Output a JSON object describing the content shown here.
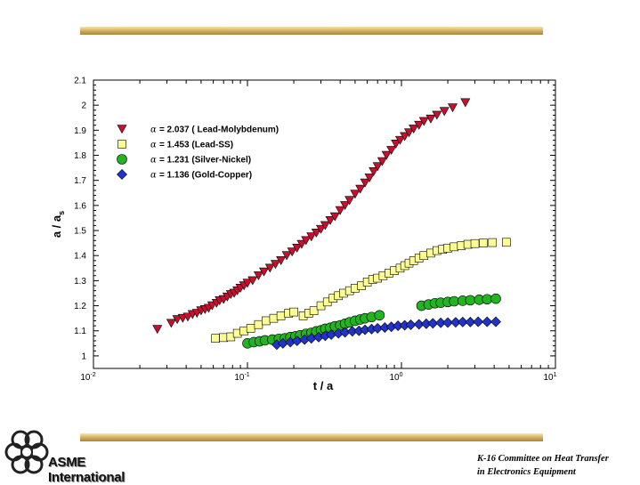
{
  "chart_data": {
    "type": "scatter",
    "xlabel": "t / a",
    "ylabel": "a / a",
    "ylabel_subscript": "s",
    "xscale": "log",
    "xlim": [
      0.01,
      10
    ],
    "ylim": [
      0.95,
      2.1
    ],
    "x_tick_labels": [
      {
        "base": "10",
        "exp": "-2"
      },
      {
        "base": "10",
        "exp": "-1"
      },
      {
        "base": "10",
        "exp": "0"
      },
      {
        "base": "10",
        "exp": "1"
      }
    ],
    "y_ticks": [
      "1",
      "1.1",
      "1.2",
      "1.3",
      "1.4",
      "1.5",
      "1.6",
      "1.7",
      "1.8",
      "1.9",
      "2",
      "2.1"
    ],
    "grid": false,
    "legend_position": "top-left",
    "series": [
      {
        "name": "= 2.037 ( Lead-Molybdenum)",
        "alpha_symbol": "α",
        "marker": "triangle-down",
        "color": "#c8102e",
        "points": [
          [
            0.026,
            1.106
          ],
          [
            0.032,
            1.13
          ],
          [
            0.035,
            1.145
          ],
          [
            0.038,
            1.15
          ],
          [
            0.041,
            1.155
          ],
          [
            0.044,
            1.165
          ],
          [
            0.047,
            1.17
          ],
          [
            0.05,
            1.18
          ],
          [
            0.053,
            1.185
          ],
          [
            0.056,
            1.19
          ],
          [
            0.059,
            1.2
          ],
          [
            0.063,
            1.21
          ],
          [
            0.066,
            1.22
          ],
          [
            0.07,
            1.225
          ],
          [
            0.074,
            1.235
          ],
          [
            0.078,
            1.245
          ],
          [
            0.082,
            1.25
          ],
          [
            0.086,
            1.26
          ],
          [
            0.09,
            1.27
          ],
          [
            0.095,
            1.28
          ],
          [
            0.1,
            1.29
          ],
          [
            0.108,
            1.3
          ],
          [
            0.118,
            1.32
          ],
          [
            0.128,
            1.335
          ],
          [
            0.14,
            1.35
          ],
          [
            0.152,
            1.365
          ],
          [
            0.165,
            1.38
          ],
          [
            0.18,
            1.4
          ],
          [
            0.195,
            1.415
          ],
          [
            0.21,
            1.43
          ],
          [
            0.225,
            1.445
          ],
          [
            0.24,
            1.46
          ],
          [
            0.26,
            1.475
          ],
          [
            0.28,
            1.49
          ],
          [
            0.3,
            1.505
          ],
          [
            0.32,
            1.52
          ],
          [
            0.345,
            1.54
          ],
          [
            0.37,
            1.555
          ],
          [
            0.4,
            1.58
          ],
          [
            0.43,
            1.6
          ],
          [
            0.46,
            1.62
          ],
          [
            0.5,
            1.645
          ],
          [
            0.54,
            1.665
          ],
          [
            0.58,
            1.69
          ],
          [
            0.62,
            1.71
          ],
          [
            0.66,
            1.735
          ],
          [
            0.7,
            1.755
          ],
          [
            0.75,
            1.775
          ],
          [
            0.8,
            1.8
          ],
          [
            0.86,
            1.82
          ],
          [
            0.92,
            1.845
          ],
          [
            0.98,
            1.86
          ],
          [
            1.05,
            1.875
          ],
          [
            1.12,
            1.89
          ],
          [
            1.2,
            1.905
          ],
          [
            1.3,
            1.92
          ],
          [
            1.4,
            1.935
          ],
          [
            1.55,
            1.945
          ],
          [
            1.7,
            1.96
          ],
          [
            1.9,
            1.975
          ],
          [
            2.15,
            1.99
          ],
          [
            2.6,
            2.01
          ]
        ]
      },
      {
        "name": "= 1.453 (Lead-SS)",
        "alpha_symbol": "α",
        "marker": "square",
        "color": "#fdfd96",
        "points": [
          [
            0.062,
            1.07
          ],
          [
            0.07,
            1.073
          ],
          [
            0.078,
            1.076
          ],
          [
            0.086,
            1.09
          ],
          [
            0.095,
            1.1
          ],
          [
            0.105,
            1.11
          ],
          [
            0.118,
            1.125
          ],
          [
            0.132,
            1.14
          ],
          [
            0.148,
            1.15
          ],
          [
            0.165,
            1.16
          ],
          [
            0.185,
            1.17
          ],
          [
            0.2,
            1.175
          ],
          [
            0.23,
            1.16
          ],
          [
            0.25,
            1.17
          ],
          [
            0.27,
            1.18
          ],
          [
            0.3,
            1.2
          ],
          [
            0.33,
            1.215
          ],
          [
            0.36,
            1.23
          ],
          [
            0.39,
            1.24
          ],
          [
            0.42,
            1.25
          ],
          [
            0.46,
            1.26
          ],
          [
            0.5,
            1.27
          ],
          [
            0.55,
            1.28
          ],
          [
            0.6,
            1.295
          ],
          [
            0.65,
            1.305
          ],
          [
            0.7,
            1.31
          ],
          [
            0.76,
            1.32
          ],
          [
            0.83,
            1.33
          ],
          [
            0.9,
            1.34
          ],
          [
            0.98,
            1.35
          ],
          [
            1.05,
            1.36
          ],
          [
            1.12,
            1.37
          ],
          [
            1.2,
            1.38
          ],
          [
            1.3,
            1.39
          ],
          [
            1.4,
            1.4
          ],
          [
            1.55,
            1.41
          ],
          [
            1.7,
            1.42
          ],
          [
            1.85,
            1.425
          ],
          [
            2.0,
            1.43
          ],
          [
            2.2,
            1.435
          ],
          [
            2.45,
            1.44
          ],
          [
            2.7,
            1.445
          ],
          [
            3.0,
            1.448
          ],
          [
            3.4,
            1.45
          ],
          [
            3.9,
            1.452
          ],
          [
            4.8,
            1.453
          ]
        ]
      },
      {
        "name": "= 1.231 (Silver-Nickel)",
        "alpha_symbol": "α",
        "marker": "circle",
        "color": "#22b522",
        "points": [
          [
            0.1,
            1.05
          ],
          [
            0.11,
            1.055
          ],
          [
            0.12,
            1.058
          ],
          [
            0.13,
            1.062
          ],
          [
            0.145,
            1.065
          ],
          [
            0.16,
            1.068
          ],
          [
            0.175,
            1.07
          ],
          [
            0.19,
            1.075
          ],
          [
            0.205,
            1.078
          ],
          [
            0.22,
            1.082
          ],
          [
            0.24,
            1.088
          ],
          [
            0.26,
            1.092
          ],
          [
            0.28,
            1.098
          ],
          [
            0.3,
            1.102
          ],
          [
            0.32,
            1.108
          ],
          [
            0.345,
            1.112
          ],
          [
            0.37,
            1.118
          ],
          [
            0.4,
            1.122
          ],
          [
            0.43,
            1.128
          ],
          [
            0.46,
            1.134
          ],
          [
            0.5,
            1.14
          ],
          [
            0.54,
            1.145
          ],
          [
            0.58,
            1.15
          ],
          [
            0.64,
            1.155
          ],
          [
            0.72,
            1.162
          ],
          [
            1.35,
            1.2
          ],
          [
            1.5,
            1.205
          ],
          [
            1.65,
            1.21
          ],
          [
            1.8,
            1.212
          ],
          [
            2.0,
            1.215
          ],
          [
            2.2,
            1.218
          ],
          [
            2.5,
            1.22
          ],
          [
            2.8,
            1.222
          ],
          [
            3.2,
            1.224
          ],
          [
            3.6,
            1.226
          ],
          [
            4.1,
            1.228
          ]
        ]
      },
      {
        "name": "= 1.136 (Gold-Copper)",
        "alpha_symbol": "α",
        "marker": "diamond",
        "color": "#2233cc",
        "points": [
          [
            0.155,
            1.045
          ],
          [
            0.17,
            1.05
          ],
          [
            0.19,
            1.055
          ],
          [
            0.21,
            1.06
          ],
          [
            0.235,
            1.065
          ],
          [
            0.26,
            1.07
          ],
          [
            0.29,
            1.075
          ],
          [
            0.32,
            1.08
          ],
          [
            0.35,
            1.085
          ],
          [
            0.39,
            1.09
          ],
          [
            0.43,
            1.094
          ],
          [
            0.48,
            1.098
          ],
          [
            0.53,
            1.1
          ],
          [
            0.58,
            1.104
          ],
          [
            0.64,
            1.107
          ],
          [
            0.7,
            1.11
          ],
          [
            0.78,
            1.113
          ],
          [
            0.86,
            1.116
          ],
          [
            0.95,
            1.12
          ],
          [
            1.05,
            1.122
          ],
          [
            1.15,
            1.124
          ],
          [
            1.3,
            1.126
          ],
          [
            1.45,
            1.128
          ],
          [
            1.6,
            1.13
          ],
          [
            1.8,
            1.132
          ],
          [
            2.0,
            1.133
          ],
          [
            2.25,
            1.134
          ],
          [
            2.5,
            1.135
          ],
          [
            2.8,
            1.135
          ],
          [
            3.15,
            1.136
          ],
          [
            3.6,
            1.136
          ],
          [
            4.1,
            1.136
          ]
        ]
      }
    ]
  },
  "logo": {
    "text": "ASME International"
  },
  "footer": {
    "line1": "K-16 Committee on Heat Transfer",
    "line2": "in Electronics Equipment"
  }
}
